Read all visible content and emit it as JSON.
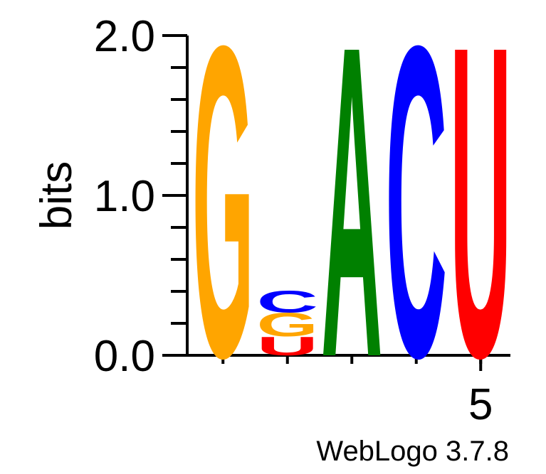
{
  "chart_data": {
    "type": "sequence-logo",
    "ylabel": "bits",
    "ylim": [
      0,
      2
    ],
    "y_ticks": [
      "0.0",
      "1.0",
      "2.0"
    ],
    "x_tick_labels": [
      {
        "position": 5,
        "label": "5"
      }
    ],
    "positions": [
      {
        "index": 1,
        "letters": [
          {
            "base": "G",
            "bits": 2.0
          }
        ]
      },
      {
        "index": 2,
        "letters": [
          {
            "base": "U",
            "bits": 0.12
          },
          {
            "base": "G",
            "bits": 0.15
          },
          {
            "base": "C",
            "bits": 0.14
          }
        ]
      },
      {
        "index": 3,
        "letters": [
          {
            "base": "A",
            "bits": 2.0
          }
        ]
      },
      {
        "index": 4,
        "letters": [
          {
            "base": "C",
            "bits": 2.0
          }
        ]
      },
      {
        "index": 5,
        "letters": [
          {
            "base": "U",
            "bits": 2.0
          }
        ]
      }
    ],
    "colors": {
      "G": "#ffa500",
      "A": "#008000",
      "C": "#0000ff",
      "U": "#ff0000"
    }
  },
  "footer": {
    "credit": "WebLogo 3.7.8"
  }
}
